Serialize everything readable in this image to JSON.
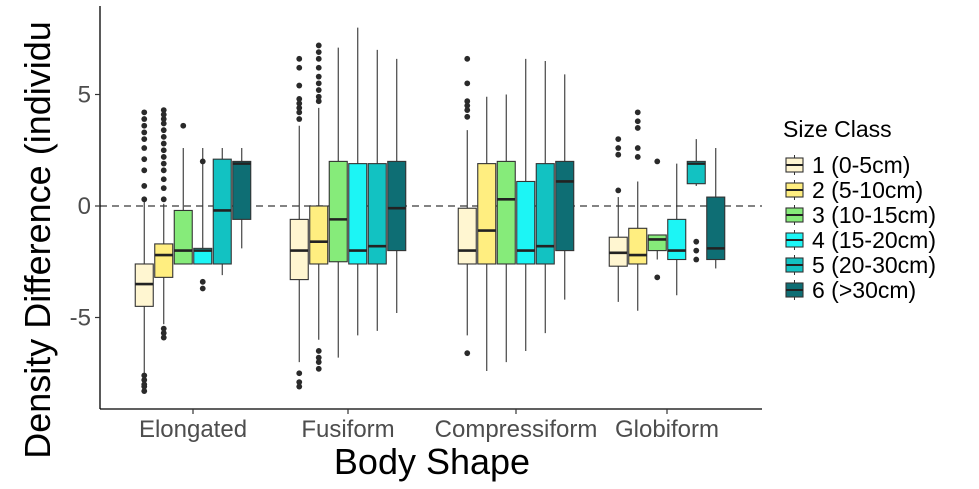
{
  "chart_data": {
    "type": "box",
    "xlabel": "Body Shape",
    "ylabel": "Density Difference (individu",
    "categories": [
      "Elongated",
      "Fusiform",
      "Compressiform",
      "Globiform"
    ],
    "y_ticks": [
      -5,
      0,
      5
    ],
    "ylim": [
      -8.6,
      8.9
    ],
    "reference_line": {
      "y": 0,
      "style": "dashed"
    },
    "grid": false,
    "legend": {
      "title": "Size Class",
      "placement": "right",
      "entries": [
        "1 (0-5cm)",
        "2 (5-10cm)",
        "3 (10-15cm)",
        "4 (15-20cm)",
        "5 (20-30cm)",
        "6 (>30cm)"
      ]
    },
    "series": [
      {
        "name": "1 (0-5cm)",
        "color": "#FFF6D1",
        "boxes": [
          {
            "category": "Elongated",
            "whisker_low": -7.7,
            "q1": -4.5,
            "median": -3.5,
            "q3": -2.6,
            "whisker_high": 0.2,
            "outliers": [
              4.2,
              3.9,
              3.6,
              3.3,
              3.0,
              2.6,
              2.1,
              1.6,
              0.9,
              0.3,
              -7.6,
              -7.8,
              -8.0,
              -8.1,
              -8.3
            ]
          },
          {
            "category": "Fusiform",
            "whisker_low": -7.0,
            "q1": -3.3,
            "median": -2.0,
            "q3": -0.6,
            "whisker_high": 3.6,
            "outliers": [
              6.6,
              6.2,
              5.4,
              4.8,
              4.6,
              4.4,
              4.2,
              3.9,
              -7.5,
              -7.9,
              -8.1
            ]
          },
          {
            "category": "Compressiform",
            "whisker_low": -5.8,
            "q1": -2.6,
            "median": -2.0,
            "q3": -0.1,
            "whisker_high": 3.4,
            "outliers": [
              6.6,
              5.5,
              4.7,
              4.5,
              4.3,
              4.0,
              -6.6
            ]
          },
          {
            "category": "Globiform",
            "whisker_low": -4.3,
            "q1": -2.7,
            "median": -2.1,
            "q3": -1.4,
            "whisker_high": 0.4,
            "outliers": [
              3.0,
              2.6,
              2.3,
              0.7
            ]
          }
        ]
      },
      {
        "name": "2 (5-10cm)",
        "color": "#FFEE80",
        "boxes": [
          {
            "category": "Elongated",
            "whisker_low": -5.3,
            "q1": -3.2,
            "median": -2.2,
            "q3": -1.7,
            "whisker_high": 0.1,
            "outliers": [
              4.3,
              4.1,
              3.9,
              3.7,
              3.4,
              3.1,
              2.8,
              2.5,
              2.2,
              1.9,
              1.6,
              1.2,
              0.8,
              0.3,
              -5.5,
              -5.7,
              -5.9
            ]
          },
          {
            "category": "Fusiform",
            "whisker_low": -6.0,
            "q1": -2.6,
            "median": -1.6,
            "q3": 0.0,
            "whisker_high": 4.4,
            "outliers": [
              7.2,
              6.9,
              6.6,
              6.2,
              5.8,
              5.5,
              5.2,
              4.9,
              4.7,
              -6.5,
              -6.8,
              -7.0,
              -7.3
            ]
          },
          {
            "category": "Compressiform",
            "whisker_low": -7.4,
            "q1": -2.6,
            "median": -1.1,
            "q3": 1.9,
            "whisker_high": 4.9,
            "outliers": []
          },
          {
            "category": "Globiform",
            "whisker_low": -4.7,
            "q1": -2.6,
            "median": -2.2,
            "q3": -1.0,
            "whisker_high": 1.1,
            "outliers": [
              4.2,
              3.8,
              3.5,
              2.6,
              2.2
            ]
          }
        ]
      },
      {
        "name": "3 (10-15cm)",
        "color": "#86EB7A",
        "boxes": [
          {
            "category": "Elongated",
            "whisker_low": -2.6,
            "q1": -2.6,
            "median": -2.0,
            "q3": -0.2,
            "whisker_high": 2.6,
            "outliers": [
              3.6
            ]
          },
          {
            "category": "Fusiform",
            "whisker_low": -6.8,
            "q1": -2.5,
            "median": -0.6,
            "q3": 2.0,
            "whisker_high": 7.1,
            "outliers": []
          },
          {
            "category": "Compressiform",
            "whisker_low": -7.0,
            "q1": -2.6,
            "median": 0.3,
            "q3": 2.0,
            "whisker_high": 5.0,
            "outliers": []
          },
          {
            "category": "Globiform",
            "whisker_low": -2.4,
            "q1": -2.0,
            "median": -1.5,
            "q3": -1.3,
            "whisker_high": -1.3,
            "outliers": [
              2.0,
              -3.2
            ]
          }
        ]
      },
      {
        "name": "4 (15-20cm)",
        "color": "#1CF5F5",
        "boxes": [
          {
            "category": "Elongated",
            "whisker_low": -2.6,
            "q1": -2.6,
            "median": -2.0,
            "q3": -1.9,
            "whisker_high": 2.6,
            "outliers": [
              2.0,
              -3.4,
              -3.7
            ]
          },
          {
            "category": "Fusiform",
            "whisker_low": -5.8,
            "q1": -2.6,
            "median": -2.0,
            "q3": 1.9,
            "whisker_high": 8.0,
            "outliers": []
          },
          {
            "category": "Compressiform",
            "whisker_low": -6.5,
            "q1": -2.6,
            "median": -2.0,
            "q3": 1.1,
            "whisker_high": 6.6,
            "outliers": []
          },
          {
            "category": "Globiform",
            "whisker_low": -4.0,
            "q1": -2.4,
            "median": -2.0,
            "q3": -0.6,
            "whisker_high": 1.9,
            "outliers": []
          }
        ]
      },
      {
        "name": "5 (20-30cm)",
        "color": "#12C2C2",
        "boxes": [
          {
            "category": "Elongated",
            "whisker_low": -3.1,
            "q1": -2.6,
            "median": -0.2,
            "q3": 2.1,
            "whisker_high": 2.6,
            "outliers": []
          },
          {
            "category": "Fusiform",
            "whisker_low": -5.6,
            "q1": -2.6,
            "median": -1.8,
            "q3": 1.9,
            "whisker_high": 7.0,
            "outliers": []
          },
          {
            "category": "Compressiform",
            "whisker_low": -5.7,
            "q1": -2.6,
            "median": -1.8,
            "q3": 1.9,
            "whisker_high": 6.5,
            "outliers": []
          },
          {
            "category": "Globiform",
            "whisker_low": 0.9,
            "q1": 1.0,
            "median": 1.9,
            "q3": 2.0,
            "whisker_high": 3.0,
            "outliers": [
              -1.6,
              -2.0,
              -2.4
            ]
          }
        ]
      },
      {
        "name": "6 (>30cm)",
        "color": "#0E6E74",
        "boxes": [
          {
            "category": "Elongated",
            "whisker_low": -1.9,
            "q1": -0.6,
            "median": 1.9,
            "q3": 2.0,
            "whisker_high": 2.6,
            "outliers": []
          },
          {
            "category": "Fusiform",
            "whisker_low": -4.8,
            "q1": -2.0,
            "median": -0.1,
            "q3": 2.0,
            "whisker_high": 6.6,
            "outliers": []
          },
          {
            "category": "Compressiform",
            "whisker_low": -4.2,
            "q1": -2.0,
            "median": 1.1,
            "q3": 2.0,
            "whisker_high": 5.9,
            "outliers": []
          },
          {
            "category": "Globiform",
            "whisker_low": -2.8,
            "q1": -2.4,
            "median": -1.9,
            "q3": 0.4,
            "whisker_high": 2.6,
            "outliers": []
          }
        ]
      }
    ]
  }
}
